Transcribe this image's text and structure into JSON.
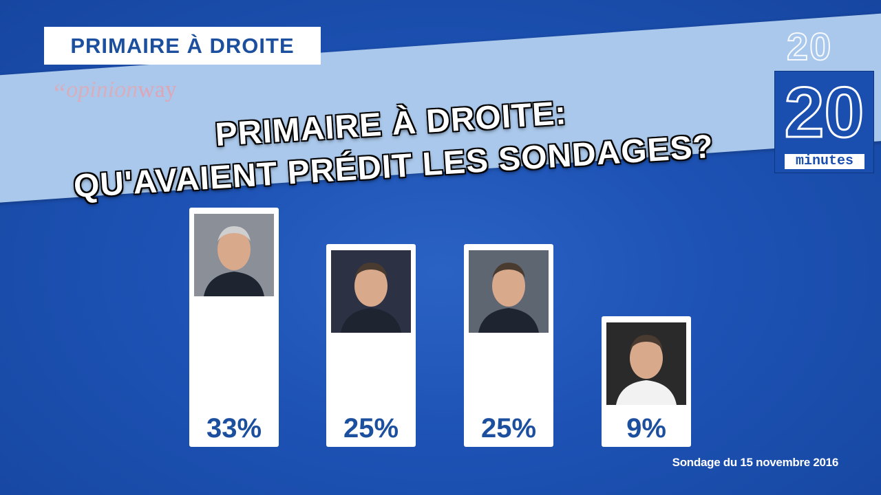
{
  "tag": "PRIMAIRE À DROITE",
  "headline": {
    "line1": "PRIMAIRE À DROITE:",
    "line2": "QU'AVAIENT PRÉDIT LES SONDAGES?"
  },
  "logos": {
    "opinionway": {
      "quote": "“",
      "part1": "opinion",
      "part2": "way"
    },
    "twenty_minutes": {
      "number": "20",
      "word": "minutes"
    }
  },
  "source": "Sondage du 15 novembre 2016",
  "colors": {
    "background": "#1d52b4",
    "band": "#aac8eb",
    "value_text": "#1d4f9f"
  },
  "chart_data": {
    "type": "bar",
    "categories": [
      "",
      "",
      "",
      ""
    ],
    "values": [
      33,
      25,
      25,
      9
    ],
    "value_labels": [
      "33%",
      "25%",
      "25%",
      "9%"
    ],
    "ylim": [
      0,
      35
    ],
    "grid": false,
    "legend": "none"
  }
}
